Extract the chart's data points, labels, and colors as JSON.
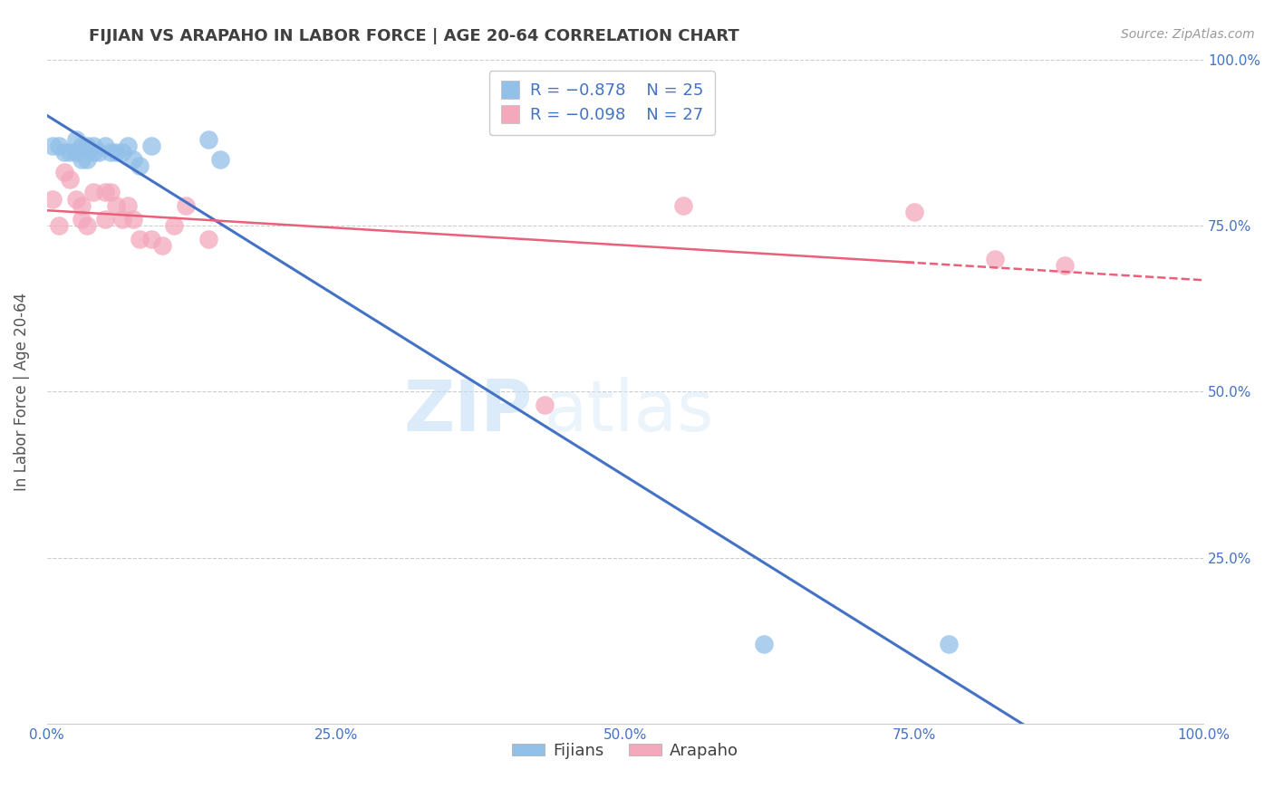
{
  "title": "FIJIAN VS ARAPAHO IN LABOR FORCE | AGE 20-64 CORRELATION CHART",
  "source_text": "Source: ZipAtlas.com",
  "ylabel": "In Labor Force | Age 20-64",
  "xlim": [
    0.0,
    1.0
  ],
  "ylim": [
    0.0,
    1.0
  ],
  "xticks": [
    0.0,
    0.25,
    0.5,
    0.75,
    1.0
  ],
  "xtick_labels": [
    "0.0%",
    "25.0%",
    "50.0%",
    "75.0%",
    "100.0%"
  ],
  "yticks": [
    0.0,
    0.25,
    0.5,
    0.75,
    1.0
  ],
  "ytick_labels_right": [
    "",
    "25.0%",
    "50.0%",
    "75.0%",
    "100.0%"
  ],
  "fijian_color": "#92c0e8",
  "arapaho_color": "#f4a8bc",
  "fijian_line_color": "#4472c4",
  "arapaho_line_color": "#e8607a",
  "legend_label_fijian": "Fijians",
  "legend_label_arapaho": "Arapaho",
  "watermark_zip": "ZIP",
  "watermark_atlas": "atlas",
  "fijian_x": [
    0.005,
    0.01,
    0.015,
    0.02,
    0.025,
    0.025,
    0.03,
    0.03,
    0.035,
    0.035,
    0.04,
    0.04,
    0.045,
    0.05,
    0.055,
    0.06,
    0.065,
    0.07,
    0.075,
    0.08,
    0.09,
    0.14,
    0.15,
    0.62,
    0.78
  ],
  "fijian_y": [
    0.87,
    0.87,
    0.86,
    0.86,
    0.88,
    0.86,
    0.87,
    0.85,
    0.87,
    0.85,
    0.87,
    0.86,
    0.86,
    0.87,
    0.86,
    0.86,
    0.86,
    0.87,
    0.85,
    0.84,
    0.87,
    0.88,
    0.85,
    0.12,
    0.12
  ],
  "arapaho_x": [
    0.005,
    0.01,
    0.015,
    0.02,
    0.025,
    0.03,
    0.03,
    0.035,
    0.04,
    0.05,
    0.05,
    0.055,
    0.06,
    0.065,
    0.07,
    0.075,
    0.08,
    0.09,
    0.1,
    0.11,
    0.12,
    0.14,
    0.43,
    0.55,
    0.75,
    0.82,
    0.88
  ],
  "arapaho_y": [
    0.79,
    0.75,
    0.83,
    0.82,
    0.79,
    0.78,
    0.76,
    0.75,
    0.8,
    0.8,
    0.76,
    0.8,
    0.78,
    0.76,
    0.78,
    0.76,
    0.73,
    0.73,
    0.72,
    0.75,
    0.78,
    0.73,
    0.48,
    0.78,
    0.77,
    0.7,
    0.69
  ],
  "bg_color": "#ffffff",
  "grid_color": "#cccccc",
  "title_color": "#404040",
  "axis_label_color": "#555555",
  "tick_label_color": "#4472c4",
  "legend_value_color": "#4472c4"
}
